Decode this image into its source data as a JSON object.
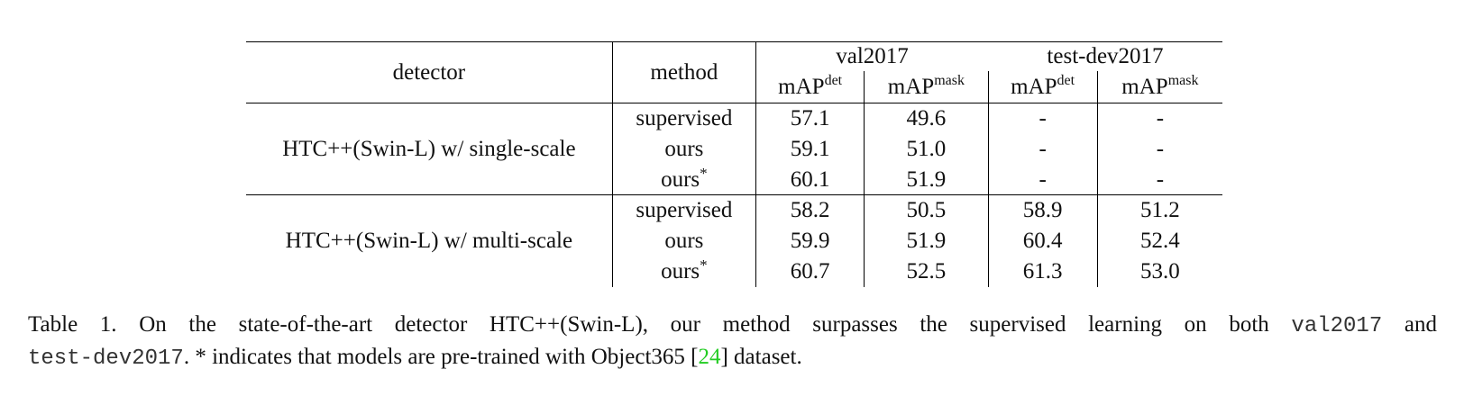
{
  "table": {
    "header": {
      "detector": "detector",
      "method": "method",
      "groups": [
        "val2017",
        "test-dev2017"
      ],
      "metric_base": "mAP",
      "metric_sups": [
        "det",
        "mask",
        "det",
        "mask"
      ]
    },
    "groups": [
      {
        "detector": "HTC++(Swin-L) w/ single-scale",
        "rows": [
          {
            "method": "supervised",
            "star": "",
            "values": [
              "57.1",
              "49.6",
              "-",
              "-"
            ]
          },
          {
            "method": "ours",
            "star": "",
            "values": [
              "59.1",
              "51.0",
              "-",
              "-"
            ]
          },
          {
            "method": "ours",
            "star": "*",
            "values": [
              "60.1",
              "51.9",
              "-",
              "-"
            ]
          }
        ]
      },
      {
        "detector": "HTC++(Swin-L) w/ multi-scale",
        "rows": [
          {
            "method": "supervised",
            "star": "",
            "values": [
              "58.2",
              "50.5",
              "58.9",
              "51.2"
            ]
          },
          {
            "method": "ours",
            "star": "",
            "values": [
              "59.9",
              "51.9",
              "60.4",
              "52.4"
            ]
          },
          {
            "method": "ours",
            "star": "*",
            "values": [
              "60.7",
              "52.5",
              "61.3",
              "53.0"
            ]
          }
        ]
      }
    ]
  },
  "caption": {
    "part1": "Table 1. On the state-of-the-art detector HTC++(Swin-L), our method surpasses the supervised learning on both ",
    "code1": "val2017",
    "part2": " and",
    "code2": "test-dev2017",
    "part3": ". * indicates that models are pre-trained with Object365 [",
    "cite": "24",
    "part4": "] dataset."
  }
}
